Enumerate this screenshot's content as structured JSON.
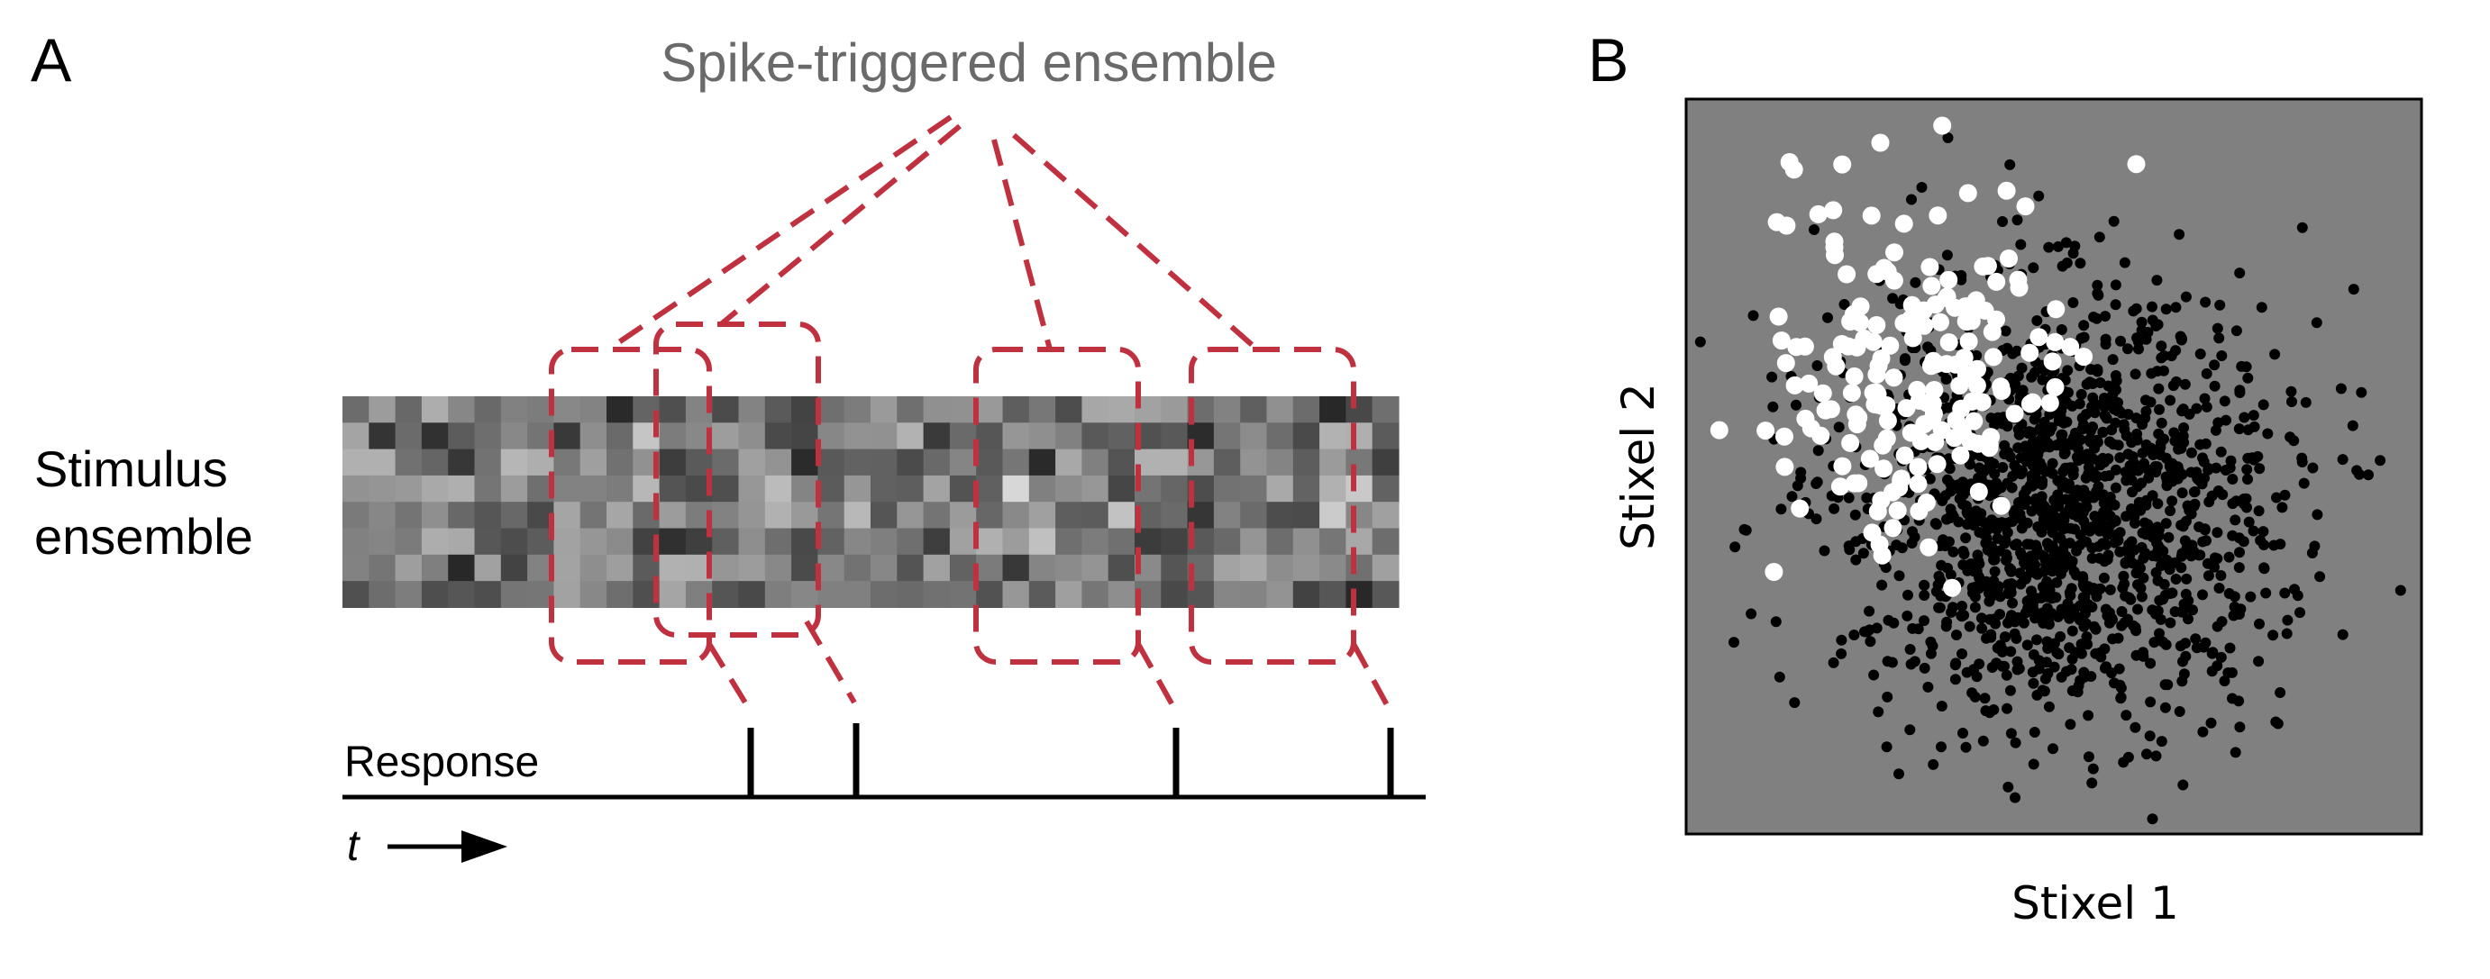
{
  "panel_a": {
    "letter": "A",
    "title": "Spike-triggered ensemble",
    "stimulus_label_line1": "Stimulus",
    "stimulus_label_line2": "ensemble",
    "response_label": "Response",
    "time_label": "t",
    "spike_count": 4,
    "highlight_color": "#c0313f"
  },
  "panel_b": {
    "letter": "B",
    "xlabel": "Stixel 1",
    "ylabel": "Stixel 2",
    "background_color": "#808080",
    "raw_stimulus_color": "#000000",
    "spike_triggered_color": "#ffffff"
  },
  "icons": {
    "time_arrow": "right-arrow-icon"
  }
}
